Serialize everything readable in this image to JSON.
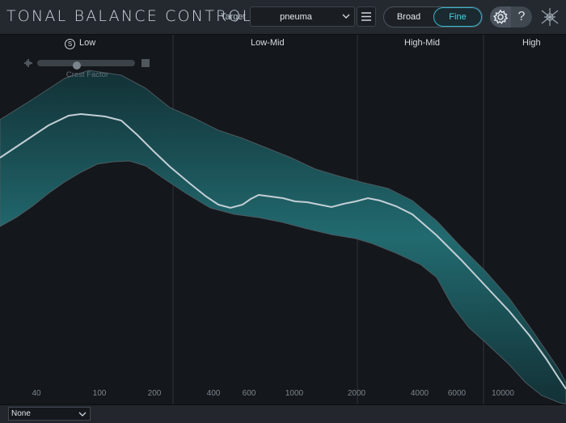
{
  "header": {
    "app_title": "TONAL BALANCE CONTROL",
    "target_label": "Target",
    "target_value": "pneuma",
    "mode_broad": "Broad",
    "mode_fine": "Fine",
    "mode_selected": "Fine",
    "help_label": "?"
  },
  "bands": [
    {
      "label": "Low",
      "solo_label": "S"
    },
    {
      "label": "Low-Mid"
    },
    {
      "label": "High-Mid"
    },
    {
      "label": "High"
    }
  ],
  "crest_factor": {
    "label": "Crest Factor",
    "value": 0.4
  },
  "freq_axis": [
    "40",
    "100",
    "200",
    "400",
    "600",
    "1000",
    "2000",
    "4000",
    "6000",
    "10000"
  ],
  "colors": {
    "accent": "#4fd0e6",
    "band_fill": "#1f6b70",
    "curve": "#c3cfd6"
  },
  "footer": {
    "dropdown_value": "None"
  }
}
